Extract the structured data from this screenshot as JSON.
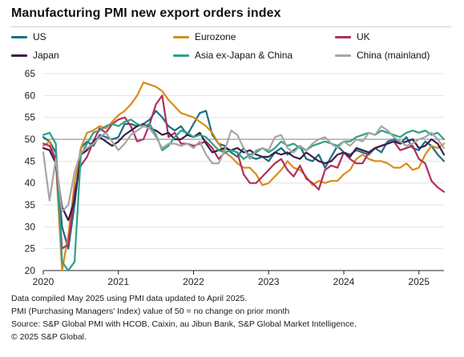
{
  "title": "Manufacturing PMI new export orders index",
  "notes": [
    "Data compiled May 2025 using PMI data updated to April 2025.",
    "PMI (Purchasing Managers' Index) value of 50 = no change on prior month",
    "Source: S&P Global PMI with HCOB, Caixin, au Jibun Bank, S&P Global Market Intelligence.",
    "© 2025 S&P Global."
  ],
  "chart_data": {
    "type": "line",
    "title": "Manufacturing PMI new export orders index",
    "xlabel": "",
    "ylabel": "",
    "x_start": "2020-01",
    "x_end": "2025-04",
    "frequency": "monthly",
    "xlim": [
      "2020-01",
      "2025-05"
    ],
    "ylim": [
      20,
      65
    ],
    "yticks": [
      20,
      25,
      30,
      35,
      40,
      45,
      50,
      55,
      60,
      65
    ],
    "xticks": [
      {
        "label": "2020",
        "date": "2020-01"
      },
      {
        "label": "2021",
        "date": "2021-01"
      },
      {
        "label": "2022",
        "date": "2022-01"
      },
      {
        "label": "2023",
        "date": "2023-01"
      },
      {
        "label": "2024",
        "date": "2024-01"
      },
      {
        "label": "2025",
        "date": "2025-01"
      }
    ],
    "grid": "horizontal",
    "reference_line": 50,
    "legend_position": "top",
    "series": [
      {
        "name": "US",
        "color": "#1b6f82",
        "values": [
          50.5,
          49.5,
          47.0,
          30.0,
          25.0,
          35.0,
          48.0,
          49.5,
          48.5,
          51.0,
          50.5,
          50.0,
          50.5,
          53.5,
          53.5,
          53.0,
          53.5,
          54.5,
          56.5,
          55.0,
          53.0,
          52.0,
          53.0,
          51.0,
          53.5,
          56.0,
          56.5,
          51.0,
          49.0,
          48.5,
          47.0,
          46.0,
          48.0,
          46.0,
          45.5,
          46.0,
          45.0,
          47.0,
          48.0,
          46.5,
          47.5,
          48.5,
          45.5,
          45.0,
          46.5,
          43.5,
          46.0,
          48.5,
          47.0,
          46.5,
          47.5,
          47.0,
          46.5,
          48.0,
          47.0,
          49.5,
          50.0,
          49.0,
          50.5,
          48.0,
          47.5,
          49.5,
          48.5,
          46.5,
          45.0
        ]
      },
      {
        "name": "Eurozone",
        "color": "#d98c1a",
        "values": [
          48.5,
          49.5,
          45.0,
          20.0,
          28.0,
          40.0,
          48.0,
          51.5,
          52.0,
          53.0,
          52.5,
          54.0,
          55.5,
          56.5,
          58.0,
          60.0,
          63.0,
          62.5,
          62.0,
          61.0,
          59.0,
          57.5,
          56.0,
          55.5,
          55.0,
          54.0,
          53.0,
          51.5,
          49.0,
          47.0,
          46.0,
          44.5,
          43.5,
          43.5,
          42.0,
          39.5,
          40.0,
          41.5,
          43.0,
          45.0,
          43.5,
          43.0,
          41.5,
          39.5,
          40.5,
          40.0,
          40.5,
          40.5,
          42.0,
          43.0,
          45.5,
          46.5,
          45.5,
          45.0,
          45.0,
          44.5,
          43.5,
          43.5,
          44.5,
          43.0,
          43.5,
          46.5,
          48.5,
          48.0,
          49.0
        ]
      },
      {
        "name": "UK",
        "color": "#b32d60",
        "values": [
          49.0,
          48.5,
          45.5,
          25.0,
          26.0,
          38.0,
          44.0,
          46.0,
          49.5,
          52.5,
          51.5,
          53.5,
          54.5,
          55.0,
          53.0,
          49.5,
          50.0,
          53.5,
          58.0,
          60.0,
          50.5,
          51.5,
          49.0,
          49.0,
          48.5,
          49.0,
          49.5,
          48.0,
          45.5,
          47.0,
          47.5,
          47.0,
          42.0,
          40.0,
          40.0,
          41.5,
          43.0,
          44.5,
          45.5,
          43.0,
          41.5,
          44.0,
          41.0,
          40.0,
          38.5,
          43.0,
          44.0,
          43.5,
          47.0,
          45.5,
          44.5,
          44.5,
          47.0,
          48.0,
          48.5,
          49.0,
          49.5,
          47.5,
          48.0,
          48.5,
          45.5,
          44.5,
          40.5,
          39.0,
          38.0
        ]
      },
      {
        "name": "Japan",
        "color": "#3b1d4a",
        "values": [
          48.0,
          47.5,
          44.5,
          34.5,
          31.5,
          36.0,
          46.5,
          47.5,
          49.5,
          50.5,
          49.5,
          48.5,
          49.5,
          51.0,
          52.0,
          53.0,
          53.5,
          52.5,
          52.0,
          51.0,
          51.5,
          50.0,
          50.0,
          51.0,
          50.5,
          51.5,
          49.0,
          47.0,
          47.5,
          48.0,
          47.5,
          48.0,
          47.0,
          47.5,
          46.5,
          46.0,
          46.0,
          47.0,
          46.5,
          47.0,
          46.0,
          45.5,
          47.0,
          46.0,
          45.0,
          44.5,
          45.0,
          46.5,
          47.0,
          46.0,
          48.0,
          47.5,
          47.0,
          48.0,
          48.5,
          49.0,
          49.5,
          49.0,
          49.5,
          50.0,
          48.0,
          48.5,
          50.0,
          49.0,
          46.5
        ]
      },
      {
        "name": "Asia ex-Japan & China",
        "color": "#2fa088",
        "values": [
          51.0,
          51.5,
          49.0,
          22.0,
          20.0,
          22.0,
          46.5,
          49.0,
          51.5,
          52.0,
          53.0,
          53.5,
          53.0,
          54.0,
          54.5,
          53.5,
          53.0,
          53.5,
          51.0,
          47.5,
          48.5,
          50.5,
          52.0,
          51.5,
          50.5,
          51.0,
          50.5,
          49.0,
          47.5,
          47.0,
          47.5,
          47.0,
          45.5,
          46.5,
          47.0,
          48.0,
          47.0,
          48.0,
          49.5,
          48.5,
          49.0,
          48.0,
          47.5,
          48.5,
          49.0,
          49.5,
          49.0,
          48.5,
          49.5,
          49.5,
          50.5,
          51.0,
          51.5,
          51.0,
          52.0,
          51.5,
          51.0,
          50.5,
          51.5,
          52.0,
          51.5,
          52.0,
          51.0,
          51.5,
          50.0
        ]
      },
      {
        "name": "China (mainland)",
        "color": "#a6a6a6",
        "values": [
          47.0,
          36.0,
          45.5,
          33.5,
          35.0,
          42.5,
          47.0,
          48.0,
          49.0,
          50.5,
          51.5,
          49.5,
          47.5,
          49.0,
          51.0,
          52.0,
          53.0,
          52.5,
          50.5,
          48.0,
          49.0,
          49.0,
          48.5,
          49.0,
          48.0,
          49.5,
          46.5,
          44.5,
          44.5,
          47.5,
          52.0,
          51.0,
          48.0,
          45.5,
          47.5,
          48.0,
          47.5,
          50.5,
          51.0,
          48.0,
          47.0,
          48.5,
          47.5,
          49.0,
          50.0,
          50.5,
          49.0,
          48.0,
          49.5,
          48.5,
          50.0,
          49.5,
          51.5,
          51.0,
          53.0,
          52.0,
          50.5,
          49.5,
          48.5,
          49.0,
          50.0,
          50.5,
          51.5,
          50.0,
          48.0
        ]
      }
    ]
  }
}
